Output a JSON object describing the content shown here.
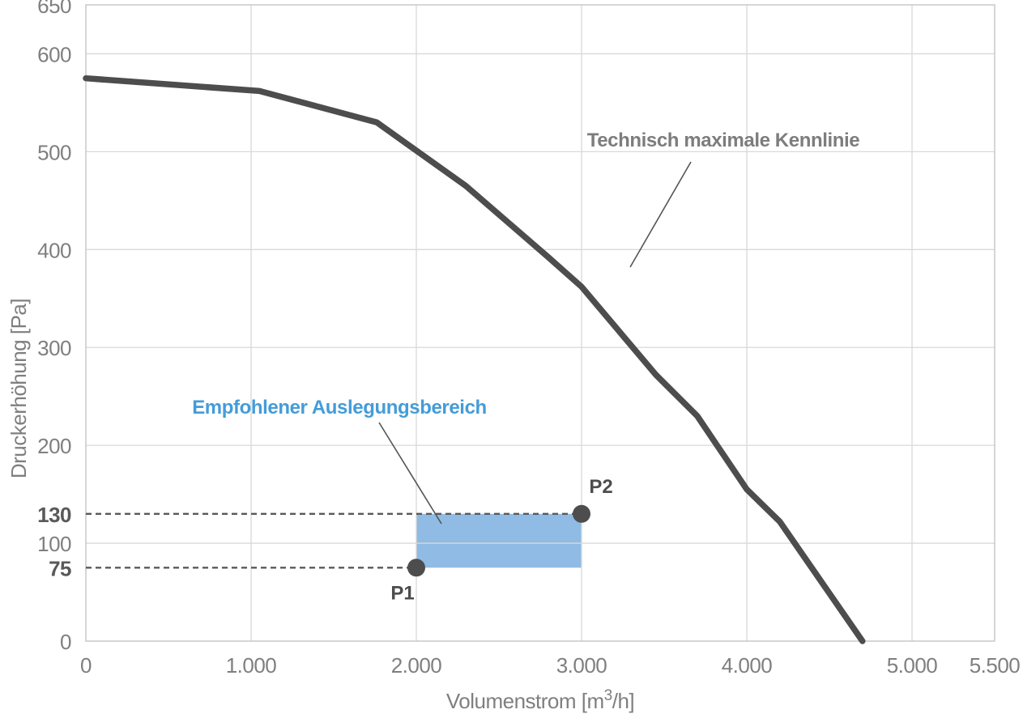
{
  "chart_data": {
    "type": "line",
    "title": "",
    "xlabel": "Volumenstrom [m³/h]",
    "xlabel_parts": {
      "pre": "Volumenstrom [m",
      "sup": "3",
      "post": "/h]"
    },
    "ylabel": "Druckerhöhung [Pa]",
    "xlim": [
      0,
      5500
    ],
    "ylim": [
      0,
      650
    ],
    "grid": true,
    "legend": "none",
    "x_ticks": [
      {
        "value": 0,
        "label": "0"
      },
      {
        "value": 1000,
        "label": "1.000"
      },
      {
        "value": 2000,
        "label": "2.000"
      },
      {
        "value": 3000,
        "label": "3.000"
      },
      {
        "value": 4000,
        "label": "4.000"
      },
      {
        "value": 5000,
        "label": "5.000"
      },
      {
        "value": 5500,
        "label": "5.500"
      }
    ],
    "y_ticks": [
      {
        "value": 650,
        "label": "650"
      },
      {
        "value": 600,
        "label": "600"
      },
      {
        "value": 500,
        "label": "500"
      },
      {
        "value": 400,
        "label": "400"
      },
      {
        "value": 300,
        "label": "300"
      },
      {
        "value": 200,
        "label": "200"
      },
      {
        "value": 100,
        "label": "100"
      },
      {
        "value": 0,
        "label": "0"
      }
    ],
    "y_special_ticks": [
      {
        "value": 130,
        "label": "130"
      },
      {
        "value": 75,
        "label": "75"
      }
    ],
    "series": [
      {
        "name": "Technisch maximale Kennlinie",
        "color": "#4d4d4d",
        "points": [
          [
            0,
            575
          ],
          [
            1050,
            562
          ],
          [
            1760,
            530
          ],
          [
            2300,
            465
          ],
          [
            2800,
            392
          ],
          [
            3000,
            362
          ],
          [
            3450,
            272
          ],
          [
            3700,
            230
          ],
          [
            4000,
            155
          ],
          [
            4200,
            122
          ],
          [
            4700,
            0
          ]
        ]
      }
    ],
    "design_region": {
      "label": "Empfohlener Auslegungsbereich",
      "x_range": [
        2000,
        3000
      ],
      "y_range": [
        75,
        130
      ],
      "fill": "#6fa8dc",
      "fill_opacity": 0.78,
      "label_color": "#449cd8"
    },
    "points": [
      {
        "name": "P1",
        "x": 2000,
        "y": 75
      },
      {
        "name": "P2",
        "x": 3000,
        "y": 130
      }
    ],
    "guide_lines": [
      {
        "y": 130,
        "x_from": 0,
        "x_to": 3000
      },
      {
        "y": 75,
        "x_from": 0,
        "x_to": 2000
      }
    ],
    "colors": {
      "background": "#ffffff",
      "grid": "#d9d9d9",
      "border": "#c4c4c4",
      "curve": "#4d4d4d",
      "dashed": "#595959",
      "marker": "#4d4d4d",
      "tick_label": "#7f7f7f",
      "bold_tick_label": "#595959",
      "annotation_gray": "#7d7d7d",
      "annotation_blue": "#449cd8",
      "leader_line": "#555555"
    }
  }
}
